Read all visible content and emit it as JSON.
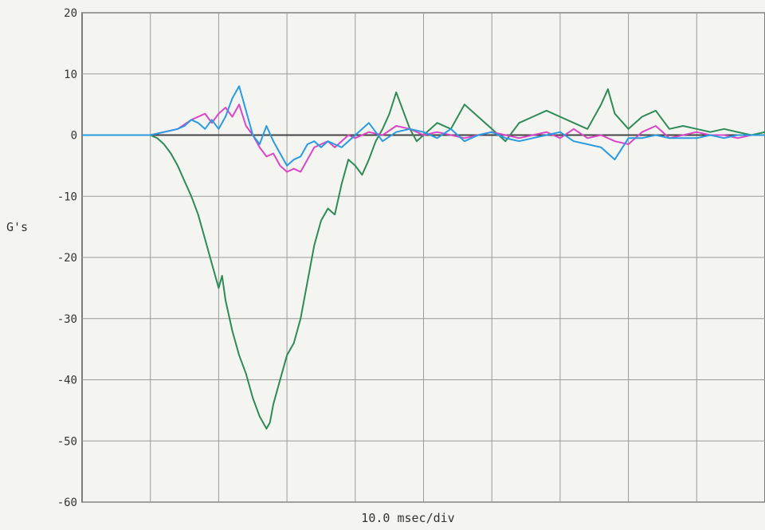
{
  "chart_data": {
    "type": "line",
    "title": "",
    "xlabel": "10.0 msec/div",
    "ylabel": "G's",
    "ylim": [
      -60,
      20
    ],
    "yticks": [
      20,
      10,
      0,
      -10,
      -20,
      -30,
      -40,
      -50,
      -60
    ],
    "ytick_labels": [
      "20",
      "10",
      "0",
      "-10",
      "-20",
      "-30",
      "-40",
      "-50",
      "-60"
    ],
    "x_units": "msec",
    "xlim": [
      0,
      100
    ],
    "x_divisions": 10,
    "grid": true,
    "legend": "none",
    "series": [
      {
        "color": "#2e8b57",
        "x": [
          0,
          5,
          10,
          11,
          12,
          13,
          14,
          15,
          16,
          17,
          18,
          19,
          20,
          20.5,
          21,
          22,
          23,
          24,
          25,
          26,
          27,
          27.5,
          28,
          29,
          30,
          31,
          32,
          33,
          34,
          35,
          36,
          37,
          38,
          39,
          40,
          41,
          42,
          43,
          44,
          45,
          46,
          47,
          48,
          49,
          50,
          52,
          54,
          56,
          58,
          60,
          62,
          64,
          66,
          68,
          70,
          72,
          74,
          76,
          77,
          78,
          80,
          82,
          84,
          86,
          88,
          90,
          92,
          94,
          96,
          98,
          100
        ],
        "y": [
          0,
          0,
          0,
          -0.5,
          -1.5,
          -3,
          -5,
          -7.5,
          -10,
          -13,
          -17,
          -21,
          -25,
          -23,
          -27,
          -32,
          -36,
          -39,
          -43,
          -46,
          -48,
          -47,
          -44,
          -40,
          -36,
          -34,
          -30,
          -24,
          -18,
          -14,
          -12,
          -13,
          -8,
          -4,
          -5,
          -6.5,
          -4,
          -1,
          1,
          3.5,
          7,
          4,
          1,
          -1,
          0,
          2,
          1,
          5,
          3,
          1,
          -1,
          2,
          3,
          4,
          3,
          2,
          1,
          5,
          7.5,
          3.5,
          1,
          3,
          4,
          1,
          1.5,
          1,
          0.5,
          1,
          0.5,
          0,
          0.5
        ]
      },
      {
        "color": "#d946c6",
        "x": [
          0,
          5,
          10,
          12,
          14,
          16,
          17,
          18,
          19,
          20,
          21,
          22,
          23,
          24,
          25,
          26,
          27,
          28,
          29,
          30,
          31,
          32,
          33,
          34,
          35,
          36,
          37,
          38,
          39,
          40,
          42,
          44,
          46,
          48,
          50,
          52,
          54,
          56,
          58,
          60,
          62,
          64,
          66,
          68,
          70,
          72,
          74,
          76,
          78,
          80,
          82,
          84,
          86,
          88,
          90,
          92,
          94,
          96,
          98,
          100
        ],
        "y": [
          0,
          0,
          0,
          0.5,
          1,
          2.5,
          3,
          3.5,
          2,
          3.5,
          4.5,
          3,
          5,
          1.5,
          0,
          -2,
          -3.5,
          -3,
          -5,
          -6,
          -5.5,
          -6,
          -4,
          -2,
          -1.5,
          -1,
          -2,
          -1,
          0,
          -0.5,
          0.5,
          0,
          1.5,
          1,
          0,
          0.5,
          0,
          -0.5,
          0,
          0.5,
          0,
          -0.5,
          0,
          0.5,
          -0.5,
          1,
          -0.5,
          0,
          -1,
          -1.5,
          0.5,
          1.5,
          -0.5,
          0,
          0.5,
          0,
          0,
          -0.5,
          0,
          0
        ]
      },
      {
        "color": "#2b9be0",
        "x": [
          0,
          5,
          10,
          12,
          14,
          15,
          16,
          17,
          18,
          19,
          20,
          21,
          22,
          23,
          24,
          25,
          26,
          27,
          28,
          29,
          30,
          31,
          32,
          33,
          34,
          35,
          36,
          37,
          38,
          39,
          40,
          42,
          44,
          46,
          48,
          50,
          52,
          54,
          56,
          58,
          60,
          62,
          64,
          66,
          68,
          70,
          72,
          74,
          76,
          78,
          80,
          82,
          84,
          86,
          88,
          90,
          92,
          94,
          96,
          98,
          100
        ],
        "y": [
          0,
          0,
          0,
          0.5,
          1,
          1.5,
          2.5,
          2,
          1,
          2.5,
          1,
          3,
          6,
          8,
          4,
          0,
          -1.5,
          1.5,
          -1,
          -3,
          -5,
          -4,
          -3.5,
          -1.5,
          -1,
          -2,
          -1,
          -1.5,
          -2,
          -1,
          0,
          2,
          -1,
          0.5,
          1,
          0.5,
          -0.5,
          1,
          -1,
          0,
          0.5,
          -0.5,
          -1,
          -0.5,
          0,
          0.5,
          -1,
          -1.5,
          -2,
          -4,
          -0.5,
          -0.5,
          0,
          -0.5,
          -0.5,
          -0.5,
          0,
          -0.5,
          0,
          0,
          0
        ]
      }
    ]
  }
}
